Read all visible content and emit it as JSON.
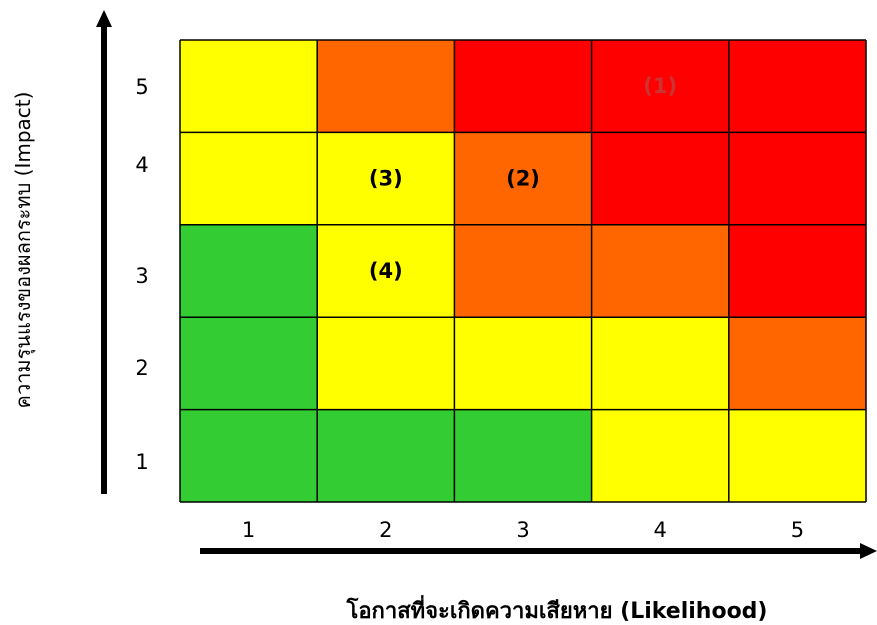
{
  "chart_data": {
    "type": "heatmap",
    "xlabel": "โอกาสที่จะเกิดความเสียหาย (Likelihood)",
    "ylabel": "ความรุนแรงของผลกระทบ (Impact)",
    "x_ticks": [
      "1",
      "2",
      "3",
      "4",
      "5"
    ],
    "y_ticks": [
      "5",
      "4",
      "3",
      "2",
      "1"
    ],
    "colors": {
      "low": "#33cc33",
      "medium": "#ffff00",
      "high": "#ff6600",
      "extreme": "#ff0000",
      "border": "#000000"
    },
    "rows": [
      {
        "impact": "5",
        "levels": [
          "medium",
          "high",
          "extreme",
          "extreme",
          "extreme"
        ]
      },
      {
        "impact": "4",
        "levels": [
          "medium",
          "medium",
          "high",
          "extreme",
          "extreme"
        ]
      },
      {
        "impact": "3",
        "levels": [
          "low",
          "medium",
          "high",
          "high",
          "extreme"
        ]
      },
      {
        "impact": "2",
        "levels": [
          "low",
          "medium",
          "medium",
          "medium",
          "high"
        ]
      },
      {
        "impact": "1",
        "levels": [
          "low",
          "low",
          "low",
          "medium",
          "medium"
        ]
      }
    ],
    "markers": [
      {
        "label": "(1)",
        "likelihood": 4,
        "impact": 5,
        "color": "#cc3333"
      },
      {
        "label": "(2)",
        "likelihood": 3,
        "impact": 4,
        "color": "#000000"
      },
      {
        "label": "(3)",
        "likelihood": 2,
        "impact": 4,
        "color": "#000000"
      },
      {
        "label": "(4)",
        "likelihood": 2,
        "impact": 3,
        "color": "#000000"
      }
    ]
  }
}
